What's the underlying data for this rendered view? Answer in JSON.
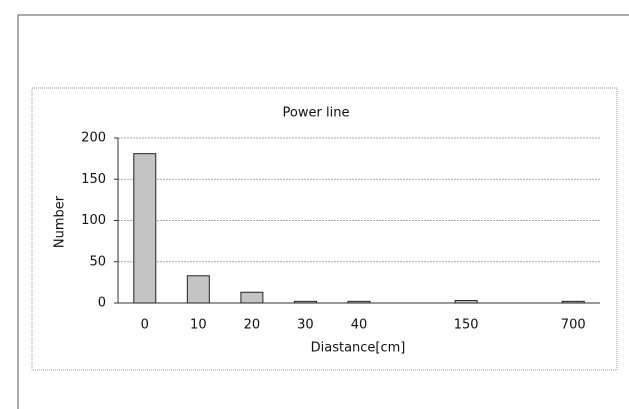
{
  "chart_data": {
    "type": "bar",
    "title": "Power line",
    "x_label": "Diastance[cm]",
    "y_label": "Number",
    "categories": [
      "0",
      "10",
      "20",
      "30",
      "40",
      null,
      "150",
      null,
      "700"
    ],
    "values": [
      181,
      33,
      13,
      2,
      2,
      0,
      3,
      0,
      2
    ],
    "color": "#c4c4c4",
    "ylim": [
      0,
      200
    ],
    "yticks": [
      0,
      50,
      100,
      150,
      200
    ],
    "grid": true
  }
}
